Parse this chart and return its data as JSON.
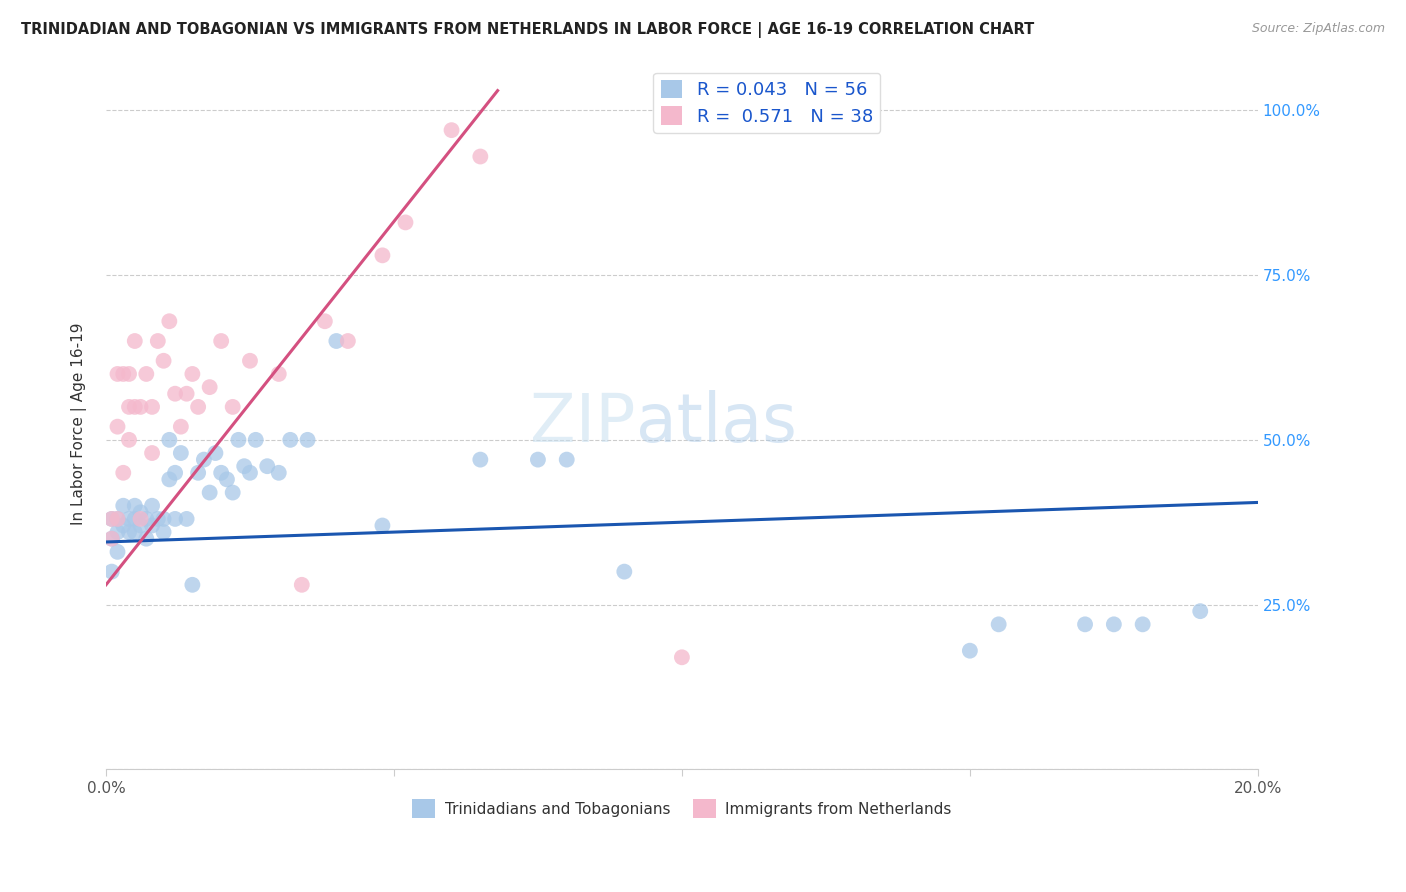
{
  "title": "TRINIDADIAN AND TOBAGONIAN VS IMMIGRANTS FROM NETHERLANDS IN LABOR FORCE | AGE 16-19 CORRELATION CHART",
  "source": "Source: ZipAtlas.com",
  "ylabel": "In Labor Force | Age 16-19",
  "legend1_label": "R = 0.043   N = 56",
  "legend2_label": "R =  0.571   N = 38",
  "blue_color": "#a8c8e8",
  "pink_color": "#f4b8cc",
  "blue_line_color": "#1a56b0",
  "pink_line_color": "#d45080",
  "legend_text_color": "#1a56cc",
  "watermark_zip": "ZIP",
  "watermark_atlas": "atlas",
  "xlim": [
    0.0,
    0.2
  ],
  "ylim": [
    0.0,
    1.05
  ],
  "figsize": [
    14.06,
    8.92
  ],
  "dpi": 100,
  "blue_line_x": [
    0.0,
    0.2
  ],
  "blue_line_y": [
    0.345,
    0.405
  ],
  "pink_line_x": [
    0.0,
    0.068
  ],
  "pink_line_y": [
    0.28,
    1.03
  ],
  "blue_scatter_x": [
    0.001,
    0.001,
    0.001,
    0.002,
    0.002,
    0.002,
    0.003,
    0.003,
    0.004,
    0.004,
    0.005,
    0.005,
    0.005,
    0.006,
    0.006,
    0.007,
    0.007,
    0.008,
    0.008,
    0.009,
    0.01,
    0.01,
    0.011,
    0.011,
    0.012,
    0.012,
    0.013,
    0.014,
    0.015,
    0.016,
    0.017,
    0.018,
    0.019,
    0.02,
    0.021,
    0.022,
    0.023,
    0.024,
    0.025,
    0.026,
    0.028,
    0.03,
    0.032,
    0.035,
    0.04,
    0.048,
    0.065,
    0.075,
    0.08,
    0.09,
    0.15,
    0.155,
    0.17,
    0.175,
    0.18,
    0.19
  ],
  "blue_scatter_y": [
    0.38,
    0.35,
    0.3,
    0.38,
    0.36,
    0.33,
    0.4,
    0.37,
    0.38,
    0.36,
    0.36,
    0.4,
    0.38,
    0.37,
    0.39,
    0.38,
    0.35,
    0.37,
    0.4,
    0.38,
    0.36,
    0.38,
    0.5,
    0.44,
    0.38,
    0.45,
    0.48,
    0.38,
    0.28,
    0.45,
    0.47,
    0.42,
    0.48,
    0.45,
    0.44,
    0.42,
    0.5,
    0.46,
    0.45,
    0.5,
    0.46,
    0.45,
    0.5,
    0.5,
    0.65,
    0.37,
    0.47,
    0.47,
    0.47,
    0.3,
    0.18,
    0.22,
    0.22,
    0.22,
    0.22,
    0.24
  ],
  "pink_scatter_x": [
    0.001,
    0.001,
    0.002,
    0.002,
    0.002,
    0.003,
    0.003,
    0.004,
    0.004,
    0.004,
    0.005,
    0.005,
    0.006,
    0.006,
    0.007,
    0.008,
    0.008,
    0.009,
    0.01,
    0.011,
    0.012,
    0.013,
    0.014,
    0.015,
    0.016,
    0.018,
    0.02,
    0.022,
    0.025,
    0.03,
    0.034,
    0.038,
    0.042,
    0.048,
    0.052,
    0.06,
    0.065,
    0.1
  ],
  "pink_scatter_y": [
    0.38,
    0.35,
    0.52,
    0.6,
    0.38,
    0.45,
    0.6,
    0.5,
    0.6,
    0.55,
    0.65,
    0.55,
    0.55,
    0.38,
    0.6,
    0.55,
    0.48,
    0.65,
    0.62,
    0.68,
    0.57,
    0.52,
    0.57,
    0.6,
    0.55,
    0.58,
    0.65,
    0.55,
    0.62,
    0.6,
    0.28,
    0.68,
    0.65,
    0.78,
    0.83,
    0.97,
    0.93,
    0.17
  ]
}
